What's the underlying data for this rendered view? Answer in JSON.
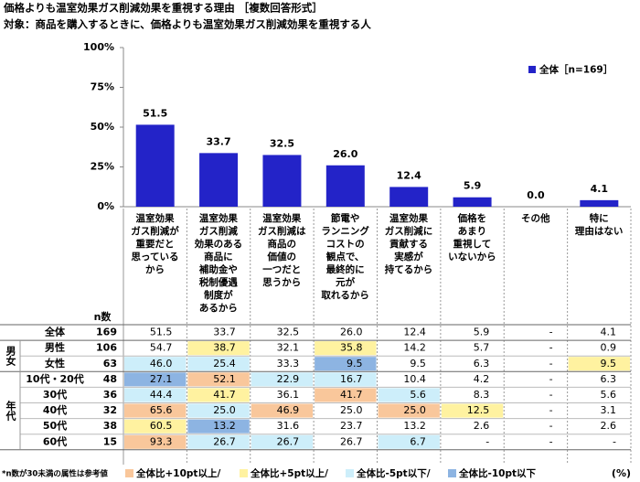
{
  "chart_data": {
    "type": "bar",
    "title": "価格よりも温室効果ガス削減効果を重視する理由 ［複数回答形式］",
    "subtitle": "対象：商品を購入するときに、価格よりも温室効果ガス削減効果を重視する人",
    "categories": [
      "温室効果\nガス削減が\n重要だと\n思っている\nから",
      "温室効果\nガス削減\n効果のある\n商品に\n補助金や\n税制優遇\n制度が\nあるから",
      "温室効果\nガス削減は\n商品の\n価値の\n一つだと\n思うから",
      "節電や\nランニング\nコストの\n観点で、\n最終的に\n元が\n取れるから",
      "温室効果\nガス削減に\n貢献する\n実感が\n持てるから",
      "価格を\nあまり\n重視して\nいないから",
      "その他",
      "特に\n理由はない"
    ],
    "series": [
      {
        "name": "全体［n=169］",
        "color": "#2323c8",
        "values": [
          51.5,
          33.7,
          32.5,
          26.0,
          12.4,
          5.9,
          0.0,
          4.1
        ],
        "value_labels": [
          "51.5",
          "33.7",
          "32.5",
          "26.0",
          "12.4",
          "5.9",
          "0.0",
          "4.1"
        ]
      }
    ],
    "ylim": [
      0,
      100
    ],
    "yticks": [
      {
        "value": 0,
        "label": "0%"
      },
      {
        "value": 25,
        "label": "25%"
      },
      {
        "value": 50,
        "label": "50%"
      },
      {
        "value": 75,
        "label": "75%"
      },
      {
        "value": 100,
        "label": "100%"
      }
    ],
    "legend": "upper right"
  },
  "table": {
    "n_header": "n数",
    "unit": "(%)",
    "footnote": "*n数が30未満の属性は参考値",
    "legend": [
      {
        "label": "全体比+10pt以上/",
        "color": "#f9c79b"
      },
      {
        "label": "全体比+5pt以上/",
        "color": "#fff2a0"
      },
      {
        "label": "全体比-5pt以下/",
        "color": "#cdeefa"
      },
      {
        "label": "全体比-10pt以下",
        "color": "#8db4e2"
      }
    ],
    "sections": [
      {
        "group": null,
        "rows": [
          {
            "label": "全体",
            "n": "169",
            "values": [
              "51.5",
              "33.7",
              "32.5",
              "26.0",
              "12.4",
              "5.9",
              "-",
              "4.1"
            ],
            "shades": [
              null,
              null,
              null,
              null,
              null,
              null,
              null,
              null
            ]
          }
        ]
      },
      {
        "group": "男女",
        "rows": [
          {
            "label": "男性",
            "n": "106",
            "values": [
              "54.7",
              "38.7",
              "32.1",
              "35.8",
              "14.2",
              "5.7",
              "-",
              "0.9"
            ],
            "shades": [
              null,
              1,
              null,
              1,
              null,
              null,
              null,
              null
            ]
          },
          {
            "label": "女性",
            "n": "63",
            "values": [
              "46.0",
              "25.4",
              "33.3",
              "9.5",
              "9.5",
              "6.3",
              "-",
              "9.5"
            ],
            "shades": [
              2,
              2,
              null,
              3,
              null,
              null,
              null,
              1
            ]
          }
        ]
      },
      {
        "group": "年代",
        "rows": [
          {
            "label": "10代・20代",
            "n": "48",
            "values": [
              "27.1",
              "52.1",
              "22.9",
              "16.7",
              "10.4",
              "4.2",
              "-",
              "6.3"
            ],
            "shades": [
              3,
              0,
              2,
              2,
              null,
              null,
              null,
              null
            ]
          },
          {
            "label": "30代",
            "n": "36",
            "values": [
              "44.4",
              "41.7",
              "36.1",
              "41.7",
              "5.6",
              "8.3",
              "-",
              "5.6"
            ],
            "shades": [
              2,
              1,
              null,
              0,
              2,
              null,
              null,
              null
            ]
          },
          {
            "label": "40代",
            "n": "32",
            "values": [
              "65.6",
              "25.0",
              "46.9",
              "25.0",
              "25.0",
              "12.5",
              "-",
              "3.1"
            ],
            "shades": [
              0,
              2,
              0,
              null,
              0,
              1,
              null,
              null
            ]
          },
          {
            "label": "50代",
            "n": "38",
            "values": [
              "60.5",
              "13.2",
              "31.6",
              "23.7",
              "13.2",
              "2.6",
              "-",
              "2.6"
            ],
            "shades": [
              1,
              3,
              null,
              null,
              null,
              null,
              null,
              null
            ]
          },
          {
            "label": "60代",
            "n": "15",
            "values": [
              "93.3",
              "26.7",
              "26.7",
              "26.7",
              "6.7",
              "-",
              "-",
              "-"
            ],
            "shades": [
              0,
              2,
              2,
              null,
              2,
              null,
              null,
              null
            ]
          }
        ]
      }
    ]
  }
}
